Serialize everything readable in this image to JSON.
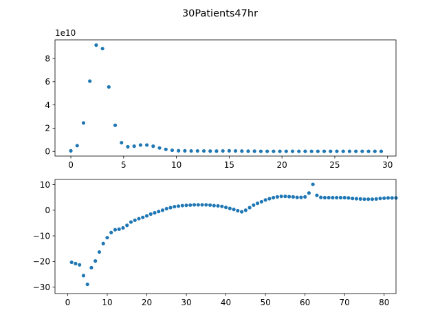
{
  "figure": {
    "title": "30Patients47hr",
    "marker_color": "#1f77b4"
  },
  "chart_data": [
    {
      "type": "scatter",
      "title": "",
      "xlabel": "",
      "ylabel": "",
      "y_offset_label": "1e10",
      "y_scale": 10000000000,
      "xlim": [
        -1.5,
        30.8
      ],
      "ylim": [
        -0.4,
        9.6
      ],
      "xticks": [
        0,
        5,
        10,
        15,
        20,
        25,
        30
      ],
      "yticks": [
        0,
        2,
        4,
        6,
        8
      ],
      "grid": false,
      "series": [
        {
          "x": [
            0,
            0.6,
            1.2,
            1.8,
            2.4,
            3.0,
            3.6,
            4.2,
            4.8,
            5.4,
            6.0,
            6.6,
            7.2,
            7.8,
            8.4,
            9.0,
            9.6,
            10.2,
            10.8,
            11.4,
            12.0,
            12.6,
            13.2,
            13.8,
            14.4,
            15.0,
            15.6,
            16.2,
            16.8,
            17.4,
            18.0,
            18.6,
            19.2,
            19.8,
            20.4,
            21.0,
            21.6,
            22.2,
            22.8,
            23.4,
            24.0,
            24.6,
            25.2,
            25.8,
            26.4,
            27.0,
            27.6,
            28.2,
            28.8,
            29.4
          ],
          "y": [
            0.05,
            0.5,
            2.45,
            6.05,
            9.15,
            8.85,
            5.55,
            2.25,
            0.75,
            0.4,
            0.45,
            0.55,
            0.55,
            0.45,
            0.3,
            0.18,
            0.1,
            0.06,
            0.05,
            0.04,
            0.04,
            0.04,
            0.03,
            0.03,
            0.04,
            0.05,
            0.04,
            0.03,
            0.02,
            0.02,
            0.01,
            0.01,
            0.01,
            0.01,
            0.01,
            0.01,
            0.01,
            0.01,
            0.01,
            0.01,
            0.01,
            0.01,
            0.01,
            0.01,
            0.01,
            0.01,
            0.01,
            0.01,
            0.01,
            0.01
          ]
        }
      ]
    },
    {
      "type": "scatter",
      "title": "",
      "xlabel": "",
      "ylabel": "",
      "xlim": [
        -3.2,
        83
      ],
      "ylim": [
        -32.5,
        12
      ],
      "xticks": [
        0,
        10,
        20,
        30,
        40,
        50,
        60,
        70,
        80
      ],
      "yticks": [
        10,
        0,
        -10,
        -20,
        -30
      ],
      "grid": false,
      "series": [
        {
          "x": [
            1,
            2,
            3,
            4,
            5,
            6,
            7,
            8,
            9,
            10,
            11,
            12,
            13,
            14,
            15,
            16,
            17,
            18,
            19,
            20,
            21,
            22,
            23,
            24,
            25,
            26,
            27,
            28,
            29,
            30,
            31,
            32,
            33,
            34,
            35,
            36,
            37,
            38,
            39,
            40,
            41,
            42,
            43,
            44,
            45,
            46,
            47,
            48,
            49,
            50,
            51,
            52,
            53,
            54,
            55,
            56,
            57,
            58,
            59,
            60,
            61,
            62,
            63,
            64,
            65,
            66,
            67,
            68,
            69,
            70,
            71,
            72,
            73,
            74,
            75,
            76,
            77,
            78,
            79,
            80,
            81,
            82,
            83
          ],
          "y": [
            -20.3,
            -20.8,
            -21.3,
            -25.5,
            -28.9,
            -22.4,
            -19.8,
            -16.3,
            -13.0,
            -10.7,
            -8.7,
            -7.6,
            -7.4,
            -6.9,
            -5.9,
            -4.6,
            -3.9,
            -3.3,
            -2.8,
            -2.2,
            -1.5,
            -1.0,
            -0.5,
            0.0,
            0.6,
            1.0,
            1.4,
            1.6,
            1.8,
            1.9,
            2.0,
            2.1,
            2.1,
            2.1,
            2.1,
            2.0,
            1.8,
            1.7,
            1.5,
            1.1,
            0.7,
            0.3,
            -0.2,
            -0.6,
            0.0,
            1.0,
            2.0,
            2.7,
            3.3,
            4.0,
            4.5,
            4.9,
            5.2,
            5.4,
            5.4,
            5.3,
            5.2,
            5.0,
            5.0,
            5.2,
            6.7,
            10.1,
            5.8,
            5.0,
            4.9,
            4.9,
            4.9,
            4.9,
            4.9,
            4.9,
            4.8,
            4.6,
            4.5,
            4.4,
            4.3,
            4.3,
            4.3,
            4.4,
            4.6,
            4.7,
            4.8,
            4.8,
            4.8
          ]
        }
      ]
    }
  ]
}
